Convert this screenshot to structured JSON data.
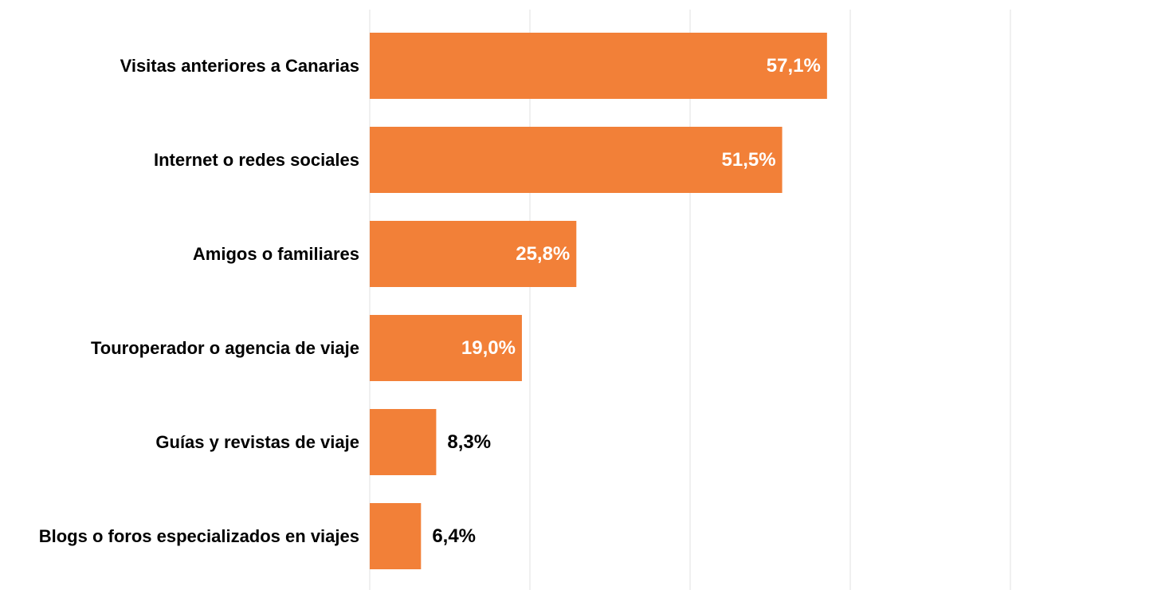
{
  "chart_data": {
    "type": "bar",
    "orientation": "horizontal",
    "title": "",
    "xlabel": "",
    "ylabel": "",
    "categories": [
      "Visitas anteriores a Canarias",
      "Internet o redes sociales",
      "Amigos o familiares",
      "Touroperador o agencia de viaje",
      "Guías y revistas de viaje",
      "Blogs o foros especializados en viajes"
    ],
    "values": [
      57.1,
      51.5,
      25.8,
      19.0,
      8.3,
      6.4
    ],
    "value_labels": [
      "57,1%",
      "51,5%",
      "25,8%",
      "19,0%",
      "8,3%",
      "6,4%"
    ],
    "xlim": [
      0,
      100
    ],
    "grid": true,
    "legend": "none",
    "colors": {
      "bar": "#F28038",
      "label_inside": "#FFFFFF",
      "label_outside": "#000000",
      "gridline": "#EBEBEB"
    }
  }
}
